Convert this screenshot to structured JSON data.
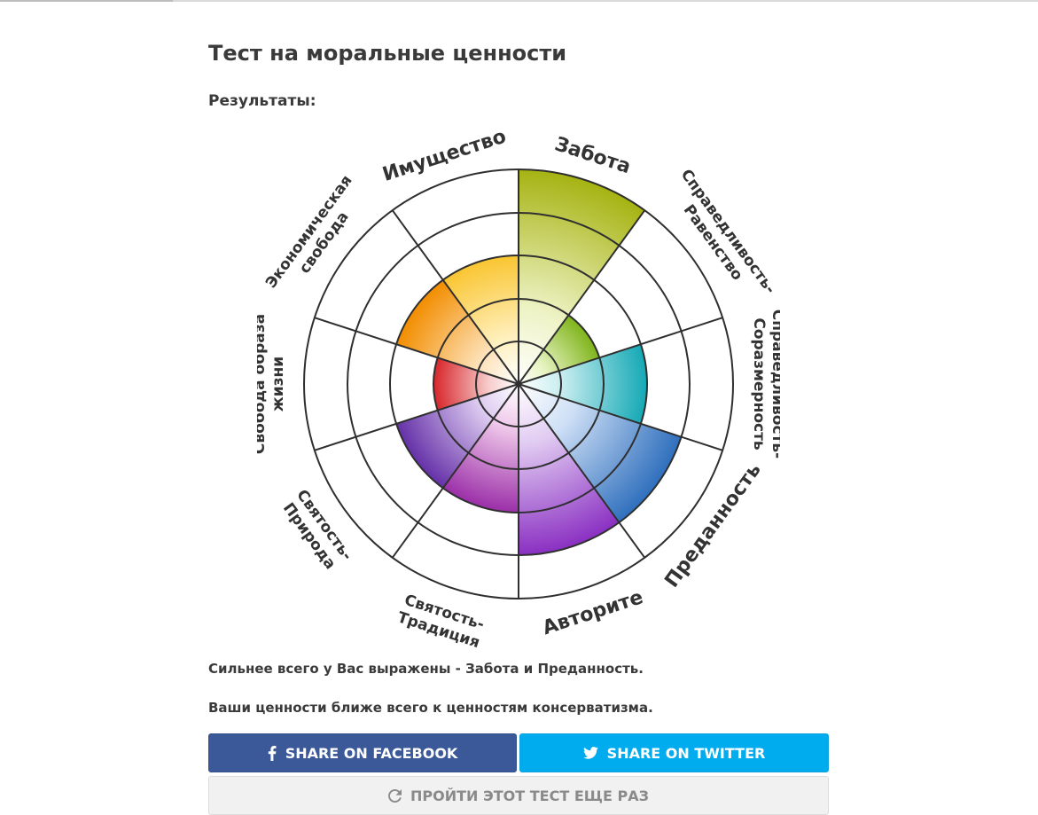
{
  "page": {
    "title": "Тест на моральные ценности",
    "results_label": "Результаты:"
  },
  "chart_data": {
    "type": "radial-bar",
    "max_level": 5,
    "categories": [
      {
        "key": "care",
        "lines": [
          "Забота"
        ],
        "value": 5,
        "color_inner": "#eef3c6",
        "color_outer": "#a6b312"
      },
      {
        "key": "fairness_equality",
        "lines": [
          "Справедливость-",
          "Равенство"
        ],
        "value": 2,
        "color_inner": "#e6f3c0",
        "color_outer": "#7fb41b"
      },
      {
        "key": "fairness_proportionality",
        "lines": [
          "Справедливость-",
          "Соразмерность"
        ],
        "value": 3,
        "color_inner": "#c6ecef",
        "color_outer": "#14a9b5"
      },
      {
        "key": "loyalty",
        "lines": [
          "Преданность"
        ],
        "value": 4,
        "color_inner": "#cfe0f6",
        "color_outer": "#2f6fbd"
      },
      {
        "key": "authority",
        "lines": [
          "Авторите"
        ],
        "value": 4,
        "color_inner": "#e1ccf2",
        "color_outer": "#8a2fc2"
      },
      {
        "key": "sanctity_tradition",
        "lines": [
          "Святость-",
          "Традиция"
        ],
        "value": 3,
        "color_inner": "#efc8ea",
        "color_outer": "#9b2fa8"
      },
      {
        "key": "sanctity_nature",
        "lines": [
          "Святость-",
          "Природа"
        ],
        "value": 3,
        "color_inner": "#dccaf0",
        "color_outer": "#6531a8"
      },
      {
        "key": "lifestyle_freedom",
        "lines": [
          "Свобода образа",
          "жизни"
        ],
        "value": 2,
        "color_inner": "#f7cdcd",
        "color_outer": "#d7262b"
      },
      {
        "key": "economic_freedom",
        "lines": [
          "Экономическая",
          "свобода"
        ],
        "value": 3,
        "color_inner": "#fde1b8",
        "color_outer": "#f28d00"
      },
      {
        "key": "property",
        "lines": [
          "Имущество"
        ],
        "value": 3,
        "color_inner": "#fff1c2",
        "color_outer": "#f9c531"
      }
    ]
  },
  "summary": {
    "strongest": "Сильнее всего у Вас выражены - Забота и Преданность.",
    "closest": "Ваши ценности ближе всего к ценностям консерватизма."
  },
  "buttons": {
    "facebook": "SHARE ON FACEBOOK",
    "twitter": "SHARE ON TWITTER",
    "retry": "ПРОЙТИ ЭТОТ ТЕСТ ЕЩЕ РАЗ"
  },
  "icons": {
    "facebook": "facebook-icon",
    "twitter": "twitter-icon",
    "retry": "refresh-icon"
  }
}
